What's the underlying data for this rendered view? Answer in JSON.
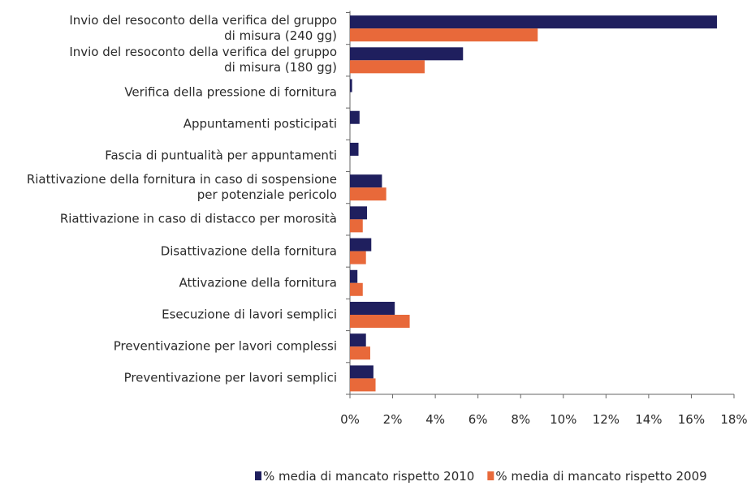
{
  "chart_data": {
    "type": "bar",
    "orientation": "horizontal",
    "categories": [
      "Invio del resoconto della verifica del gruppo\ndi misura (240 gg)",
      "Invio del resoconto della verifica del gruppo\ndi misura (180 gg)",
      "Verifica della pressione di fornitura",
      "Appuntamenti posticipati",
      "Fascia di puntualità per appuntamenti",
      "Riattivazione della fornitura in caso di sospensione\nper potenziale pericolo",
      "Riattivazione in caso di distacco per morosità",
      "Disattivazione della fornitura",
      "Attivazione della fornitura",
      "Esecuzione di lavori semplici",
      "Preventivazione per lavori complessi",
      "Preventivazione per lavori semplici"
    ],
    "series": [
      {
        "name": "% media di mancato rispetto 2010",
        "color": "#1f1f5e",
        "values": [
          17.2,
          5.3,
          0.1,
          0.45,
          0.4,
          1.5,
          0.8,
          1.0,
          0.35,
          2.1,
          0.75,
          1.1
        ]
      },
      {
        "name": "% media di mancato rispetto 2009",
        "color": "#e8693a",
        "values": [
          8.8,
          3.5,
          0,
          0,
          0,
          1.7,
          0.6,
          0.75,
          0.6,
          2.8,
          0.95,
          1.2
        ]
      }
    ],
    "xlim": [
      0,
      18
    ],
    "xticks": [
      {
        "value": 0,
        "label": "0%"
      },
      {
        "value": 2,
        "label": "2%"
      },
      {
        "value": 4,
        "label": "4%"
      },
      {
        "value": 6,
        "label": "6%"
      },
      {
        "value": 8,
        "label": "8%"
      },
      {
        "value": 10,
        "label": "10%"
      },
      {
        "value": 12,
        "label": "12%"
      },
      {
        "value": 14,
        "label": "14%"
      },
      {
        "value": 16,
        "label": "16%"
      },
      {
        "value": 18,
        "label": "18%"
      }
    ],
    "legend": "bottom"
  }
}
